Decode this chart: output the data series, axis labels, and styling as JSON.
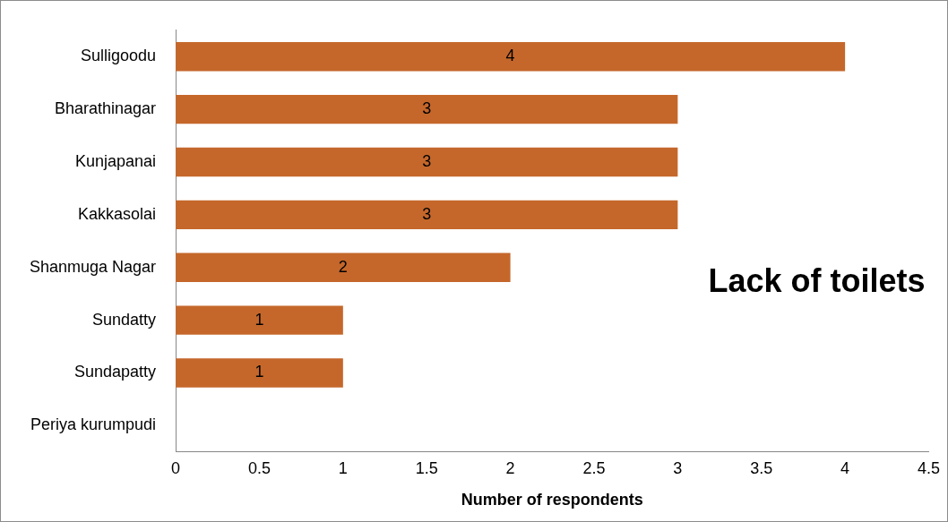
{
  "chart_data": {
    "type": "bar",
    "orientation": "horizontal",
    "title": "Lack of toilets",
    "xlabel": "Number of respondents",
    "categories": [
      "Sulligoodu",
      "Bharathinagar",
      "Kunjapanai",
      "Kakkasolai",
      "Shanmuga Nagar",
      "Sundatty",
      "Sundapatty",
      "Periya kurumpudi"
    ],
    "values": [
      4,
      3,
      3,
      3,
      2,
      1,
      1,
      0
    ],
    "value_labels": [
      "4",
      "3",
      "3",
      "3",
      "2",
      "1",
      "1",
      null
    ],
    "color": "#c5672b",
    "xlim": [
      0,
      4.5
    ],
    "xticks": [
      0,
      0.5,
      1,
      1.5,
      2,
      2.5,
      3,
      3.5,
      4,
      4.5
    ],
    "grid": false,
    "legend": false
  }
}
